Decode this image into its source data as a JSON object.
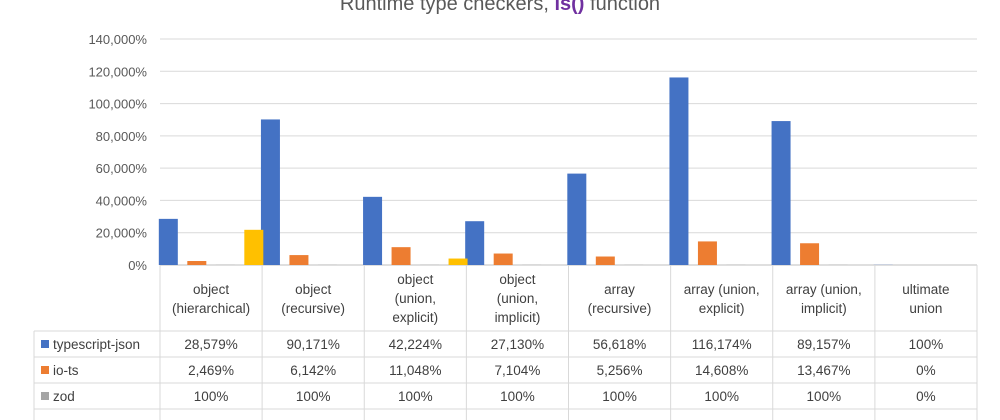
{
  "chart_data": {
    "type": "bar",
    "title_parts": [
      "Runtime type checkers, ",
      "is()",
      " function"
    ],
    "categories": [
      [
        "object",
        "(hierarchical)"
      ],
      [
        "object",
        "(recursive)"
      ],
      [
        "object",
        "(union,",
        "explicit)"
      ],
      [
        "object",
        "(union,",
        "implicit)"
      ],
      [
        "array",
        "(recursive)"
      ],
      [
        "array (union,",
        "explicit)"
      ],
      [
        "array (union,",
        "implicit)"
      ],
      [
        "ultimate",
        "union"
      ]
    ],
    "ylim": [
      0,
      140000
    ],
    "yticks": [
      0,
      20000,
      40000,
      60000,
      80000,
      100000,
      120000,
      140000
    ],
    "ytick_labels": [
      "0%",
      "20,000%",
      "40,000%",
      "60,000%",
      "80,000%",
      "100,000%",
      "120,000%",
      "140,000%"
    ],
    "gridlines": true,
    "series": [
      {
        "name": "typescript-json",
        "color": "#4472c4",
        "values": [
          28579,
          90171,
          42224,
          27130,
          56618,
          116174,
          89157,
          100
        ],
        "labels": [
          "28,579%",
          "90,171%",
          "42,224%",
          "27,130%",
          "56,618%",
          "116,174%",
          "89,157%",
          "100%"
        ]
      },
      {
        "name": "io-ts",
        "color": "#ed7d31",
        "values": [
          2469,
          6142,
          11048,
          7104,
          5256,
          14608,
          13467,
          0
        ],
        "labels": [
          "2,469%",
          "6,142%",
          "11,048%",
          "7,104%",
          "5,256%",
          "14,608%",
          "13,467%",
          "0%"
        ]
      },
      {
        "name": "zod",
        "color": "#a5a5a5",
        "values": [
          100,
          100,
          100,
          100,
          100,
          100,
          100,
          0
        ],
        "labels": [
          "100%",
          "100%",
          "100%",
          "100%",
          "100%",
          "100%",
          "100%",
          "0%"
        ]
      },
      {
        "color": "#ffc000",
        "values": [
          21800,
          0,
          4000,
          0,
          0,
          0,
          0,
          0
        ]
      }
    ]
  }
}
